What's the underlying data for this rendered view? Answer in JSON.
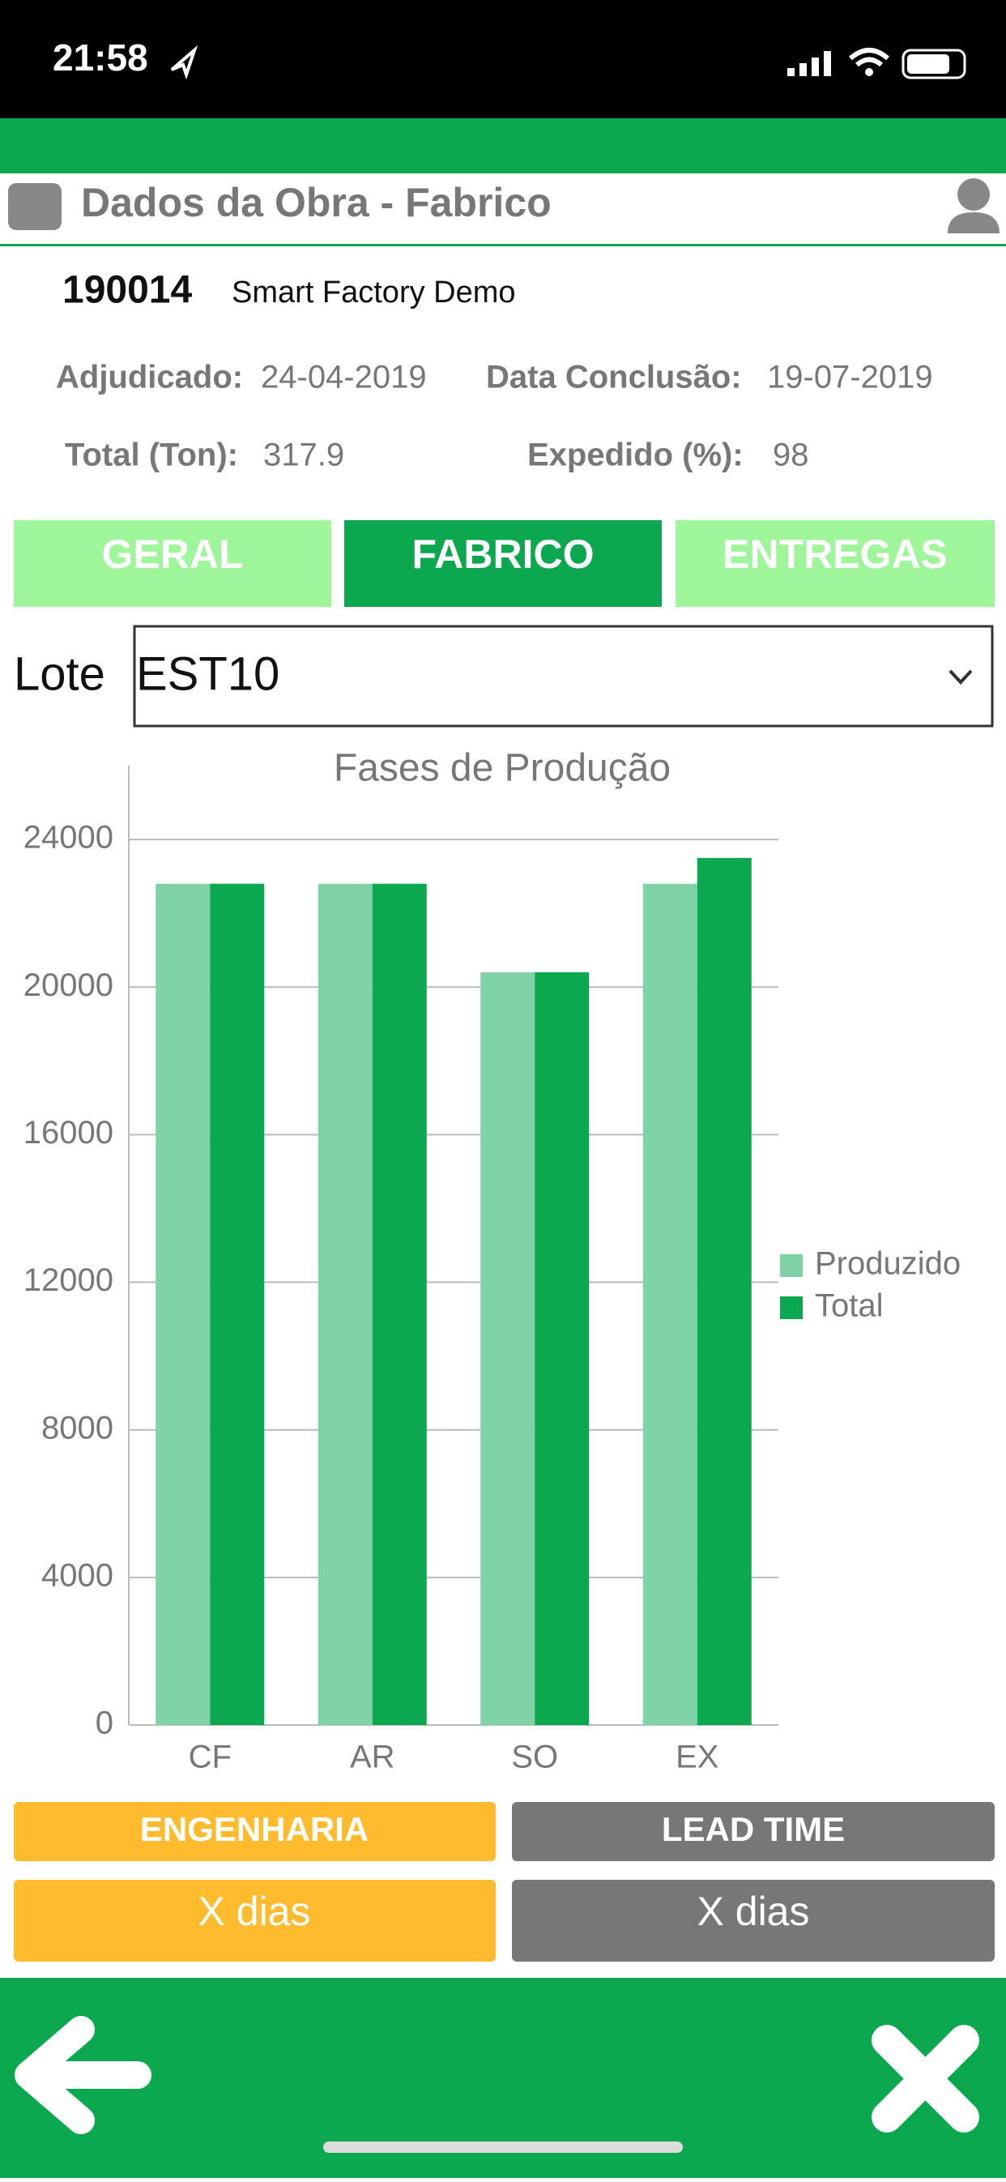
{
  "status": {
    "time": "21:58"
  },
  "header": {
    "title": "Dados da Obra - Fabrico"
  },
  "project": {
    "id": "190014",
    "name": "Smart Factory Demo",
    "fields": [
      {
        "label": "Adjudicado:",
        "value": "24-04-2019"
      },
      {
        "label": "Data Conclusão:",
        "value": "19-07-2019"
      },
      {
        "label": "Total (Ton):",
        "value": "317.9"
      },
      {
        "label": "Expedido (%):",
        "value": "98"
      }
    ]
  },
  "tabs": [
    "GERAL",
    "FABRICO",
    "ENTREGAS"
  ],
  "lote": {
    "label": "Lote",
    "value": "EST10"
  },
  "chart_data": {
    "type": "bar",
    "title": "Fases de Produção",
    "categories": [
      "CF",
      "AR",
      "SO",
      "EX"
    ],
    "series": [
      {
        "name": "Produzido",
        "color": "#7fd3a6",
        "values": [
          22800,
          22800,
          20400,
          22800
        ]
      },
      {
        "name": "Total",
        "color": "#0ba84f",
        "values": [
          22800,
          22800,
          20400,
          23500
        ]
      }
    ],
    "ylim": [
      0,
      26000
    ],
    "yticks": [
      0,
      4000,
      8000,
      12000,
      16000,
      20000,
      24000
    ],
    "grid": true,
    "legend": "right"
  },
  "buttons": [
    {
      "label": "ENGENHARIA",
      "value": "X dias"
    },
    {
      "label": "LEAD TIME",
      "value": "X dias"
    }
  ]
}
